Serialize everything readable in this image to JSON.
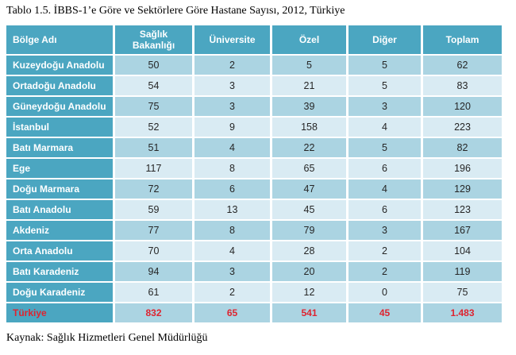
{
  "title": "Tablo 1.5. İBBS-1’e Göre ve Sektörlere Göre Hastane Sayısı, 2012, Türkiye",
  "source": "Kaynak: Sağlık Hizmetleri Genel Müdürlüğü",
  "colors": {
    "header_teal": "#4BA6C1",
    "row_medium": "#ABD4E2",
    "row_light": "#D9EBF3",
    "total_red": "#DE2430"
  },
  "table": {
    "columns": [
      "Bölge Adı",
      "Sağlık Bakanlığı",
      "Üniversite",
      "Özel",
      "Diğer",
      "Toplam"
    ],
    "rows": [
      {
        "region": "Kuzeydoğu Anadolu",
        "values": [
          "50",
          "2",
          "5",
          "5",
          "62"
        ]
      },
      {
        "region": "Ortadoğu Anadolu",
        "values": [
          "54",
          "3",
          "21",
          "5",
          "83"
        ]
      },
      {
        "region": "Güneydoğu Anadolu",
        "values": [
          "75",
          "3",
          "39",
          "3",
          "120"
        ]
      },
      {
        "region": "İstanbul",
        "values": [
          "52",
          "9",
          "158",
          "4",
          "223"
        ]
      },
      {
        "region": "Batı Marmara",
        "values": [
          "51",
          "4",
          "22",
          "5",
          "82"
        ]
      },
      {
        "region": "Ege",
        "values": [
          "117",
          "8",
          "65",
          "6",
          "196"
        ]
      },
      {
        "region": "Doğu Marmara",
        "values": [
          "72",
          "6",
          "47",
          "4",
          "129"
        ]
      },
      {
        "region": "Batı Anadolu",
        "values": [
          "59",
          "13",
          "45",
          "6",
          "123"
        ]
      },
      {
        "region": "Akdeniz",
        "values": [
          "77",
          "8",
          "79",
          "3",
          "167"
        ]
      },
      {
        "region": "Orta Anadolu",
        "values": [
          "70",
          "4",
          "28",
          "2",
          "104"
        ]
      },
      {
        "region": "Batı Karadeniz",
        "values": [
          "94",
          "3",
          "20",
          "2",
          "119"
        ]
      },
      {
        "region": "Doğu Karadeniz",
        "values": [
          "61",
          "2",
          "12",
          "0",
          "75"
        ]
      }
    ],
    "total_row": {
      "region": "Türkiye",
      "values": [
        "832",
        "65",
        "541",
        "45",
        "1.483"
      ]
    }
  }
}
